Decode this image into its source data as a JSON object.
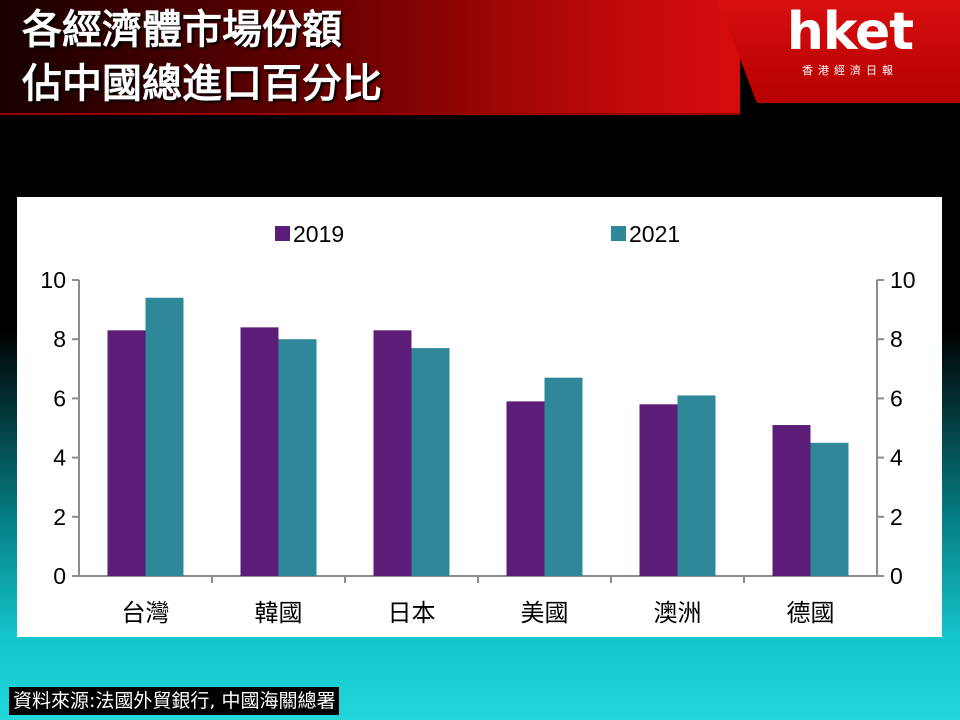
{
  "header": {
    "title_line1": "各經濟體市場份額",
    "title_line2": "佔中國總進口百分比",
    "logo": "hket",
    "logo_sub": "香港經濟日報"
  },
  "source": "資料來源:法國外貿銀行, 中國海關總署",
  "chart_data": {
    "type": "bar",
    "categories": [
      "台灣",
      "韓國",
      "日本",
      "美國",
      "澳洲",
      "德國"
    ],
    "series": [
      {
        "name": "2019",
        "color": "#5c1d79",
        "values": [
          8.3,
          8.4,
          8.3,
          5.9,
          5.8,
          5.1
        ]
      },
      {
        "name": "2021",
        "color": "#2f8899",
        "values": [
          9.4,
          8.0,
          7.7,
          6.7,
          6.1,
          4.5
        ]
      }
    ],
    "ylim": [
      0,
      10
    ],
    "yticks": [
      0,
      2,
      4,
      6,
      8,
      10
    ],
    "legend_position": "top",
    "secondary_axis": true,
    "grid": false
  }
}
